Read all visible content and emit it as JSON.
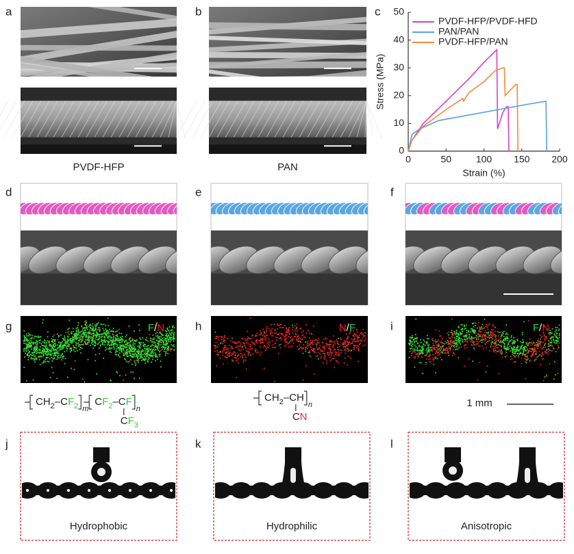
{
  "panel_labels": [
    "a",
    "b",
    "c",
    "d",
    "e",
    "f",
    "g",
    "h",
    "i",
    "j",
    "k",
    "l"
  ],
  "fiber_captions": [
    "PVDF-HFP",
    "PAN"
  ],
  "wetting_captions": [
    "Hydrophobic",
    "Hydrophilic",
    "Anisotropic"
  ],
  "map_labels": [
    [
      {
        "text": "F",
        "color": "#33cc33"
      },
      {
        "text": "/",
        "color": "#ffffff"
      },
      {
        "text": "N",
        "color": "#ff2020"
      }
    ],
    [
      {
        "text": "N",
        "color": "#ff2020"
      },
      {
        "text": "/",
        "color": "#ffffff"
      },
      {
        "text": "F",
        "color": "#33cc33"
      }
    ],
    [
      {
        "text": "F",
        "color": "#33cc33"
      },
      {
        "text": "/",
        "color": "#ffffff"
      },
      {
        "text": "N",
        "color": "#ff2020"
      }
    ]
  ],
  "scale_label": "1 mm",
  "formulas": [
    {
      "units": [
        [
          {
            "text": "CH"
          },
          {
            "text": "2",
            "sub": true
          },
          {
            "text": "–C"
          },
          {
            "text": "F",
            "color": "#33cc33"
          },
          {
            "text": "2",
            "sub": true,
            "color": "#33cc33"
          }
        ],
        [
          {
            "text": "C"
          },
          {
            "text": "F",
            "color": "#33cc33"
          },
          {
            "text": "2",
            "sub": true,
            "color": "#33cc33"
          },
          {
            "text": "–C"
          },
          {
            "text": "F",
            "color": "#33cc33"
          }
        ]
      ],
      "indices": [
        "m",
        "n"
      ],
      "pendant": [
        {
          "text": "C"
        },
        {
          "text": "F",
          "color": "#33cc33"
        },
        {
          "text": "3",
          "sub": true,
          "color": "#33cc33"
        }
      ]
    },
    {
      "units": [
        [
          {
            "text": "CH"
          },
          {
            "text": "2",
            "sub": true
          },
          {
            "text": "–CH"
          }
        ]
      ],
      "indices": [
        "n"
      ],
      "pendant": [
        {
          "text": "C"
        },
        {
          "text": "N",
          "color": "#ff2020"
        }
      ]
    }
  ],
  "chart_data": {
    "type": "line",
    "xlabel": "Strain (%)",
    "ylabel": "Stress (MPa)",
    "xlim": [
      0,
      200
    ],
    "xticks": [
      0,
      50,
      100,
      150,
      200
    ],
    "ylim": [
      0,
      50
    ],
    "yticks": [
      0,
      10,
      20,
      30,
      40,
      50
    ],
    "legend": "upper left",
    "series": [
      {
        "name": "PVDF-HFP/PVDF-HFD",
        "color": "#d63fc4",
        "x": [
          0,
          5,
          20,
          50,
          80,
          100,
          115,
          117,
          118,
          125,
          130,
          132,
          133
        ],
        "values": [
          0,
          4,
          10,
          18,
          26,
          32,
          36,
          36.5,
          8,
          14,
          16,
          16,
          0
        ]
      },
      {
        "name": "PAN/PAN",
        "color": "#5b9ee0",
        "x": [
          0,
          5,
          15,
          40,
          80,
          120,
          160,
          182,
          183
        ],
        "values": [
          0,
          6,
          8,
          11,
          13,
          15,
          17,
          18,
          0
        ]
      },
      {
        "name": "PVDF-HFP/PAN",
        "color": "#f08a3a",
        "x": [
          0,
          5,
          20,
          50,
          72,
          73,
          80,
          100,
          115,
          125,
          127,
          128,
          135,
          142,
          144,
          145
        ],
        "values": [
          0,
          4,
          9,
          15,
          19,
          18,
          21,
          25,
          29,
          30,
          30,
          20,
          22,
          24,
          24,
          0
        ]
      }
    ]
  }
}
